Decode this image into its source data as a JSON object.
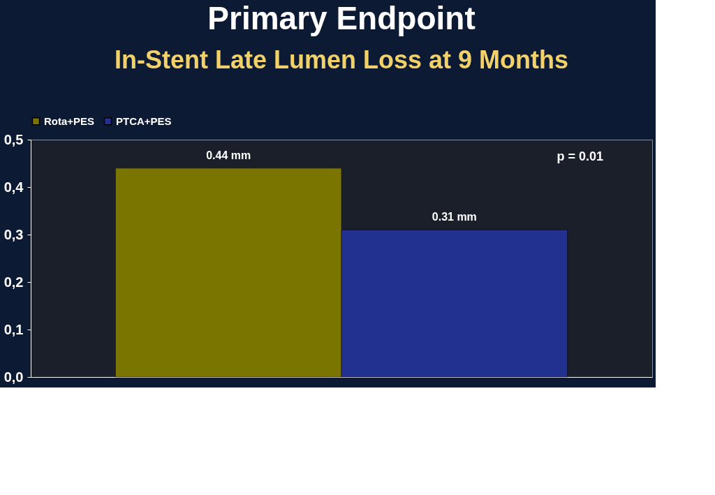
{
  "chart_data": {
    "type": "bar",
    "title": "Primary Endpoint",
    "subtitle": "In-Stent Late Lumen Loss at 9 Months",
    "categories": [
      null
    ],
    "series": [
      {
        "name": "Rota+PES",
        "color": "#7a7400",
        "values": [
          0.44
        ],
        "value_labels": [
          "0.44 mm"
        ]
      },
      {
        "name": "PTCA+PES",
        "color": "#22318f",
        "values": [
          0.31
        ],
        "value_labels": [
          "0.31 mm"
        ]
      }
    ],
    "ylim": [
      0,
      0.5
    ],
    "yticks": [
      {
        "value": 0,
        "label": "0,0"
      },
      {
        "value": 0.1,
        "label": "0,1"
      },
      {
        "value": 0.2,
        "label": "0,2"
      },
      {
        "value": 0.3,
        "label": "0,3"
      },
      {
        "value": 0.4,
        "label": "0,4"
      },
      {
        "value": 0.5,
        "label": "0,5"
      }
    ],
    "annotations": [
      "p = 0.01"
    ],
    "legend": "top",
    "grid": false,
    "tick_labels": "y"
  }
}
